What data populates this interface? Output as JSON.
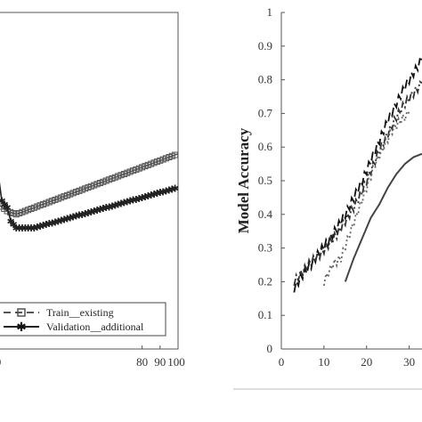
{
  "chart_data": [
    {
      "type": "line",
      "title": "",
      "xlabel": "",
      "ylabel": "",
      "xlim": [
        0,
        100
      ],
      "x_ticks": [
        "0",
        "80",
        "90",
        "100"
      ],
      "grid": false,
      "legend_position": "bottom-right",
      "series": [
        {
          "name": "Train__existing",
          "marker": "square",
          "color": "#555555",
          "x": [
            0,
            5,
            10,
            20,
            30,
            40,
            50,
            60,
            70,
            80,
            90,
            100
          ],
          "y": [
            0.63,
            0.61,
            0.6,
            0.62,
            0.64,
            0.66,
            0.68,
            0.7,
            0.72,
            0.74,
            0.76,
            0.78
          ]
        },
        {
          "name": "Validation__additional",
          "marker": "star",
          "color": "#222222",
          "x": [
            0,
            2,
            5,
            7,
            10,
            20,
            30,
            40,
            50,
            60,
            70,
            80,
            90,
            100
          ],
          "y": [
            0.72,
            0.64,
            0.62,
            0.58,
            0.56,
            0.56,
            0.575,
            0.59,
            0.605,
            0.62,
            0.635,
            0.65,
            0.665,
            0.68
          ]
        }
      ]
    },
    {
      "type": "line",
      "title": "",
      "xlabel": "",
      "ylabel": "Model Accuracy",
      "xlim": [
        0,
        33
      ],
      "ylim": [
        0,
        1
      ],
      "x_ticks": [
        "0",
        "10",
        "20",
        "30"
      ],
      "y_ticks": [
        "0",
        "0.1",
        "0.2",
        "0.3",
        "0.4",
        "0.5",
        "0.6",
        "0.7",
        "0.8",
        "0.9",
        "1"
      ],
      "grid": false,
      "series": [
        {
          "style": "long-dash",
          "x": [
            3,
            5,
            7,
            9,
            11,
            13,
            15,
            17,
            19,
            21,
            23,
            25,
            27,
            29,
            31,
            33
          ],
          "y": [
            0.18,
            0.22,
            0.25,
            0.29,
            0.32,
            0.36,
            0.4,
            0.45,
            0.5,
            0.56,
            0.62,
            0.68,
            0.73,
            0.78,
            0.82,
            0.86
          ]
        },
        {
          "style": "dash-dot",
          "x": [
            3,
            5,
            7,
            9,
            11,
            13,
            15,
            17,
            19,
            21,
            23,
            25,
            27,
            29,
            31,
            33
          ],
          "y": [
            0.2,
            0.23,
            0.26,
            0.28,
            0.31,
            0.34,
            0.38,
            0.42,
            0.47,
            0.53,
            0.59,
            0.64,
            0.69,
            0.73,
            0.76,
            0.79
          ]
        },
        {
          "style": "dotted",
          "x": [
            10,
            12,
            14,
            16,
            18,
            20,
            22,
            24,
            26,
            28,
            30
          ],
          "y": [
            0.2,
            0.25,
            0.27,
            0.34,
            0.41,
            0.48,
            0.55,
            0.6,
            0.65,
            0.68,
            0.7
          ]
        },
        {
          "style": "solid",
          "x": [
            15,
            17,
            19,
            21,
            23,
            25,
            27,
            29,
            31,
            33
          ],
          "y": [
            0.2,
            0.27,
            0.33,
            0.39,
            0.43,
            0.48,
            0.52,
            0.55,
            0.57,
            0.58
          ]
        }
      ]
    }
  ]
}
